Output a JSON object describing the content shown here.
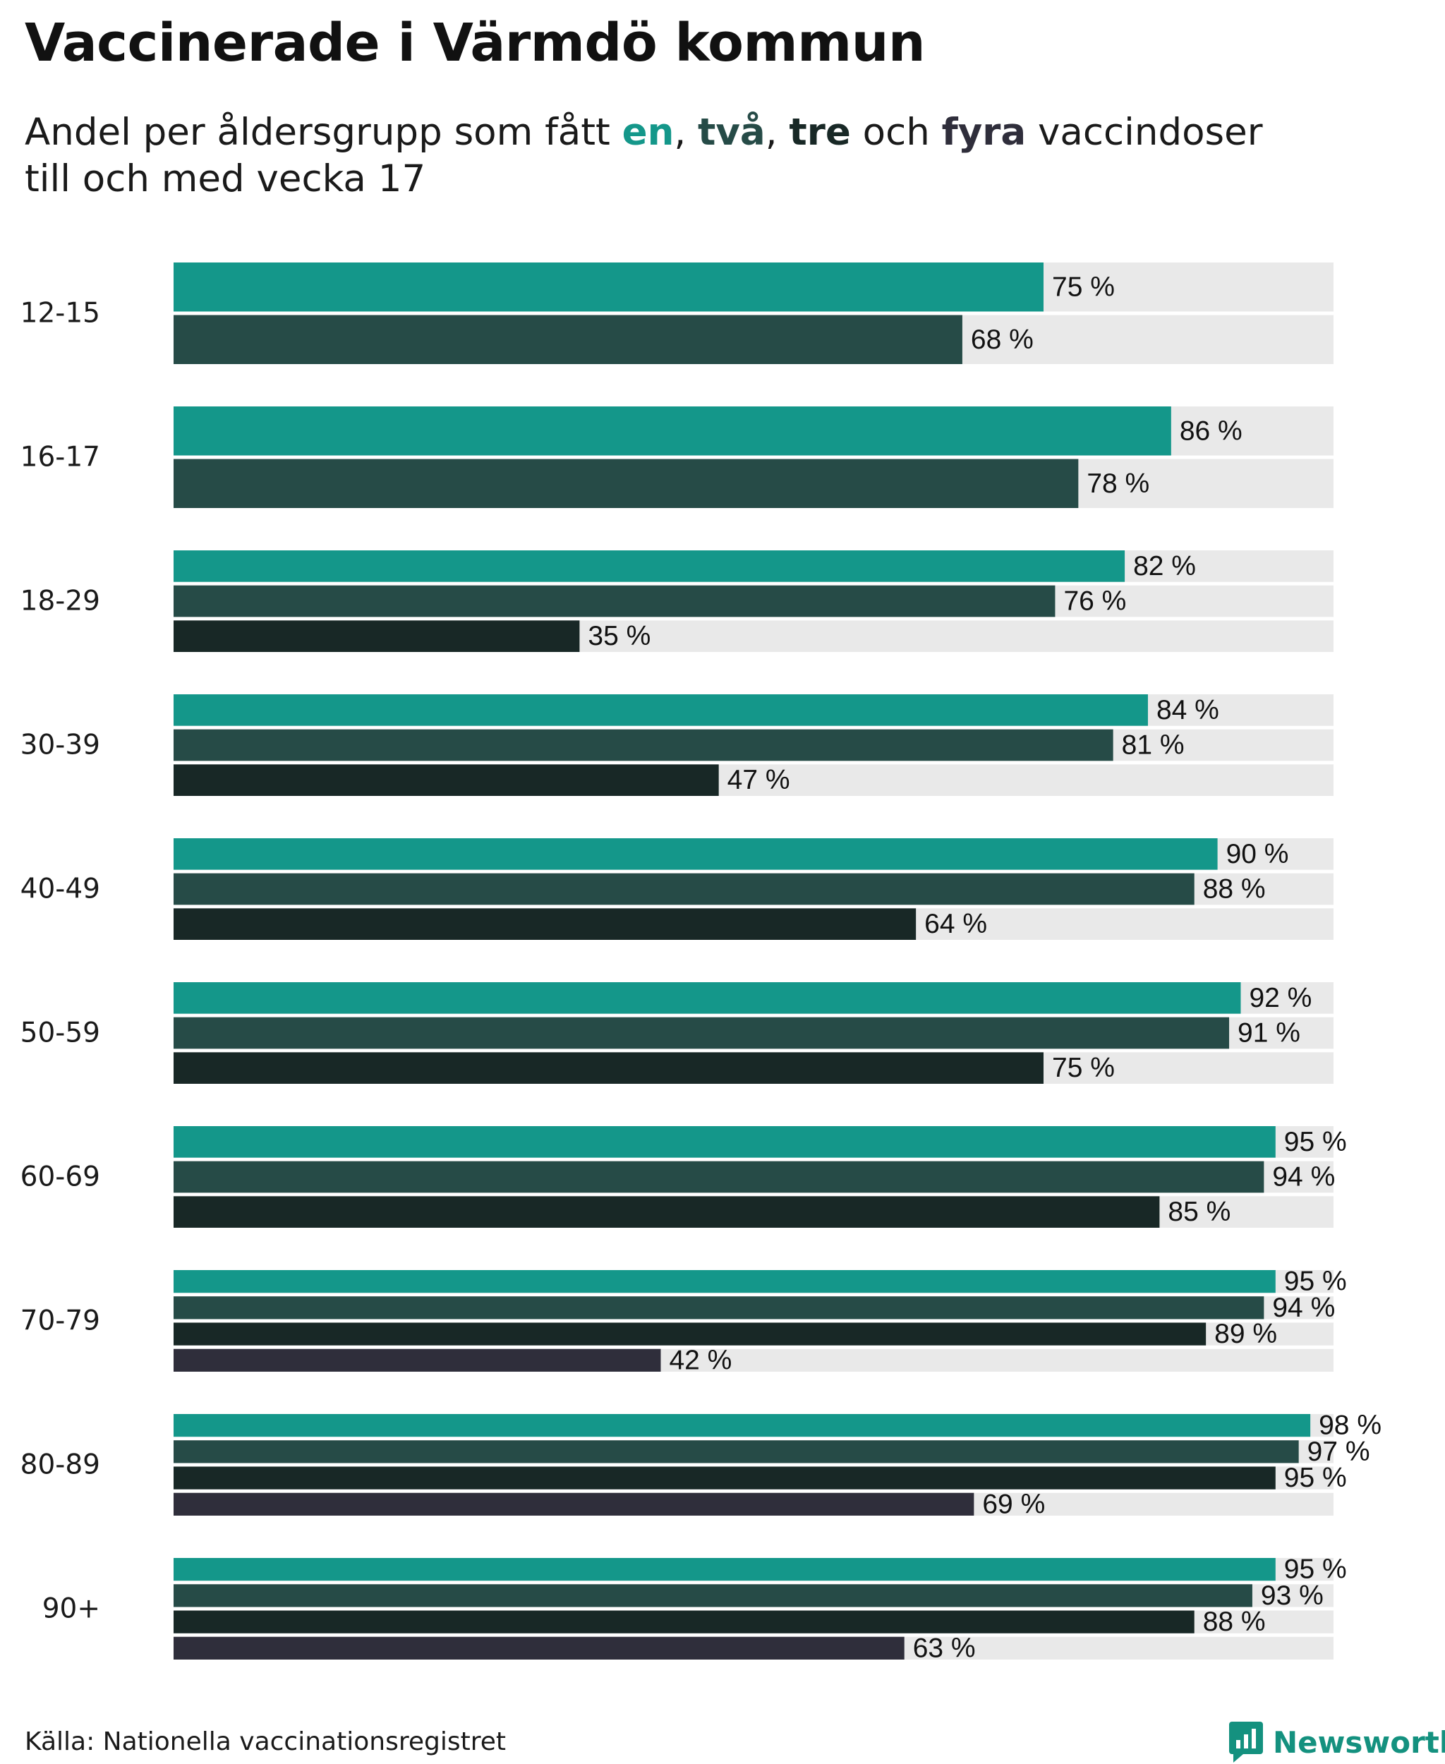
{
  "chart_data": {
    "type": "bar",
    "orientation": "horizontal",
    "title": "Vaccinerade i Värmdö kommun",
    "subtitle": {
      "prefix": "Andel per åldersgrupp som fått ",
      "w1": "en",
      "sep1": ", ",
      "w2": "två",
      "sep2": ", ",
      "w3": "tre",
      "sep3": " och ",
      "w4": "fyra",
      "suffix": " vaccindoser",
      "line2": "till och med vecka 17"
    },
    "categories": [
      "12-15",
      "16-17",
      "18-29",
      "30-39",
      "40-49",
      "50-59",
      "60-69",
      "70-79",
      "80-89",
      "90+"
    ],
    "series": [
      {
        "name": "en",
        "color": "#14978a",
        "values": [
          75,
          86,
          82,
          84,
          90,
          92,
          95,
          95,
          98,
          95
        ]
      },
      {
        "name": "två",
        "color": "#264b47",
        "values": [
          68,
          78,
          76,
          81,
          88,
          91,
          94,
          94,
          97,
          93
        ]
      },
      {
        "name": "tre",
        "color": "#182826",
        "values": [
          null,
          null,
          35,
          47,
          64,
          75,
          85,
          89,
          95,
          88
        ]
      },
      {
        "name": "fyra",
        "color": "#2f2e3b",
        "values": [
          null,
          null,
          null,
          null,
          null,
          null,
          null,
          42,
          69,
          63
        ]
      }
    ],
    "value_suffix": " %",
    "xlim": [
      0,
      100
    ],
    "track_color": "#e9e9e9",
    "xlabel": "",
    "ylabel": ""
  },
  "footer": {
    "source": "Källa: Nationella vaccinationsregistret",
    "brand": "Newsworthy",
    "brand_color": "#14917f"
  }
}
